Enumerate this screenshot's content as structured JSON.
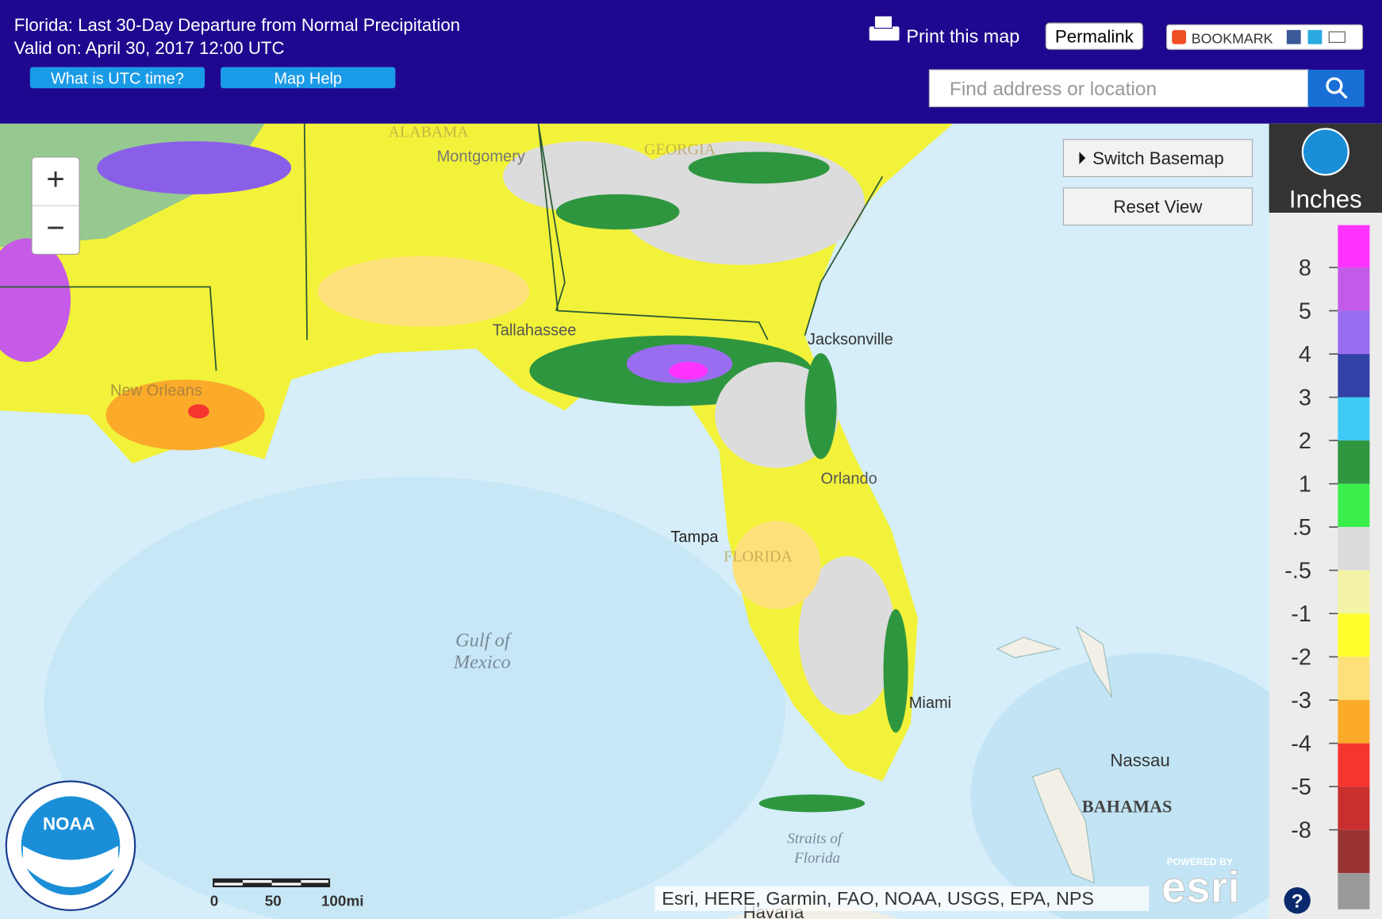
{
  "header": {
    "title": "Florida: Last 30-Day Departure from Normal Precipitation",
    "valid": "Valid on: April 30, 2017 12:00 UTC",
    "buttons": [
      "What is UTC time?",
      "Map Help"
    ],
    "print": "Print this map",
    "permalink": "Permalink",
    "bookmark": "BOOKMARK",
    "search_placeholder": "Find address or location"
  },
  "map": {
    "zoom": [
      "+",
      "−"
    ],
    "buttons": [
      "Switch Basemap",
      "Reset View"
    ],
    "labels": [
      "ALABAMA",
      "GEORGIA",
      "Montgomery",
      "Tallahassee",
      "Jacksonville",
      "New Orleans",
      "Orlando",
      "Tampa",
      "FLORIDA",
      "Miami",
      "Gulf of",
      "Mexico",
      "Nassau",
      "BAHAMAS",
      "Straits of",
      "Florida",
      "Havana"
    ],
    "scale_bar": [
      "0",
      "50",
      "100mi"
    ],
    "attribution": "Esri, HERE, Garmin, FAO, NOAA, USGS, EPA, NPS",
    "powered_by": "POWERED BY",
    "esri": "esri",
    "help": "?"
  },
  "legend": {
    "title": "Inches",
    "labels": [
      "8",
      "5",
      "4",
      "3",
      "2",
      "1",
      ".5",
      "-.5",
      "-1",
      "-2",
      "-3",
      "-4",
      "-5",
      "-8"
    ],
    "colors": [
      "#ff33ff",
      "#c25ce8",
      "#9a6cf0",
      "#3340a8",
      "#3ecbf5",
      "#2f9640",
      "#3aee4c",
      "#dcdcdc",
      "#f4f4a6",
      "#ffff2e",
      "#fde07a",
      "#fbaa2a",
      "#f7352f",
      "#c8302f",
      "#9a3434",
      "#9a9a9a"
    ]
  }
}
